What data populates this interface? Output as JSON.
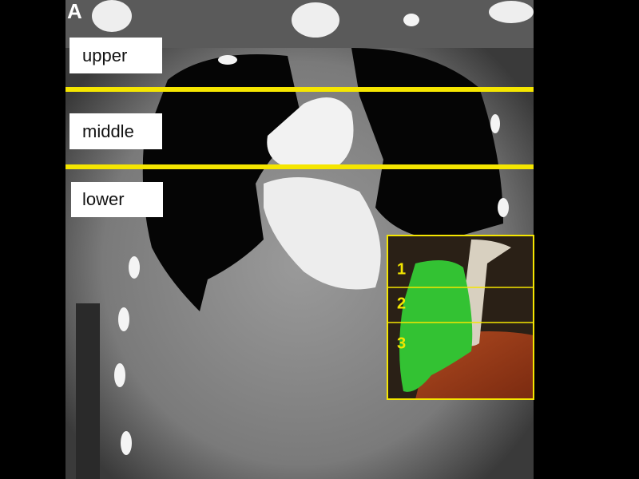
{
  "panel_label": "A",
  "zone_labels": [
    "upper",
    "middle",
    "lower"
  ],
  "inset": {
    "segments": [
      "1",
      "2",
      "3"
    ]
  }
}
